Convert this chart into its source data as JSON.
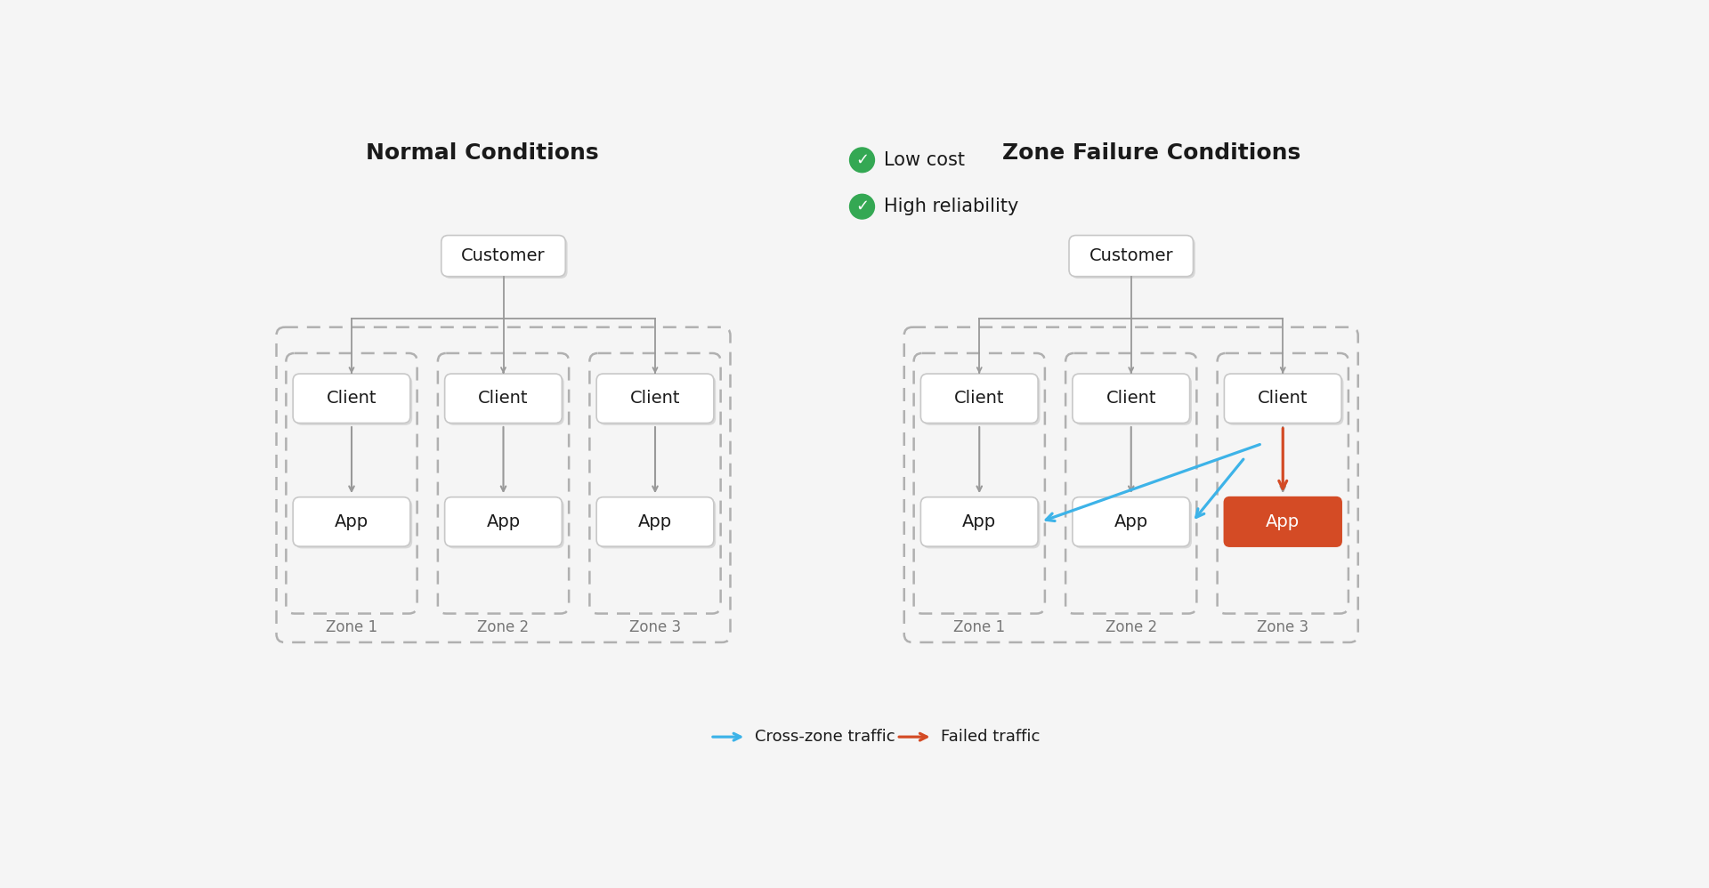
{
  "bg_color": "#f5f5f5",
  "title_normal": "Normal Conditions",
  "title_failure": "Zone Failure Conditions",
  "bullet_items": [
    "Low cost",
    "High reliability"
  ],
  "bullet_color": "#34a853",
  "box_bg": "#ffffff",
  "box_border": "#c8c8c8",
  "dashed_border": "#b0b0b0",
  "zone_labels_normal": [
    "Zone 1",
    "Zone 2",
    "Zone 3"
  ],
  "zone_labels_failure": [
    "Zone 1",
    "Zone 2",
    "Zone 3"
  ],
  "failed_app_bg": "#d44b25",
  "failed_app_text": "#ffffff",
  "cross_zone_color": "#3db3e8",
  "failed_traffic_color": "#d44b25",
  "arrow_color": "#999999",
  "text_color": "#1a1a1a",
  "legend_cross": "Cross-zone traffic",
  "legend_failed": "Failed traffic",
  "shadow_color": "#d8d8d8",
  "zone_label_color": "#777777"
}
